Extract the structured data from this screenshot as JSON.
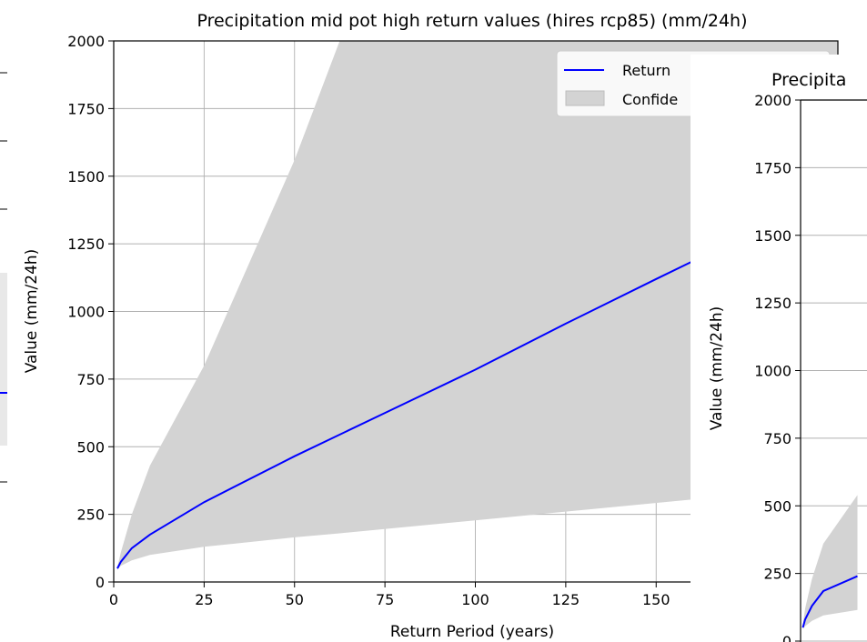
{
  "chart_data": [
    {
      "type": "line",
      "title": "Precipitation mid pot high return values (hires rcp85) (mm/24h)",
      "xlabel": "Return Period (years)",
      "ylabel": "Value (mm/24h)",
      "xticks": [
        "0",
        "25",
        "50",
        "75",
        "100",
        "125",
        "150"
      ],
      "yticks": [
        "0",
        "250",
        "500",
        "750",
        "1000",
        "1250",
        "1500",
        "1750",
        "2000"
      ],
      "ylim": [
        0,
        2000
      ],
      "grid": true,
      "legend": {
        "placement": "top-right",
        "entries": [
          "Return",
          "Confide"
        ]
      },
      "series": [
        {
          "name": "Return",
          "color": "#0000ff",
          "x": [
            1,
            2,
            5,
            10,
            25,
            50,
            75,
            100,
            125,
            150,
            160
          ],
          "values": [
            50,
            75,
            125,
            175,
            295,
            465,
            625,
            785,
            955,
            1120,
            1185
          ]
        },
        {
          "name": "Confide",
          "type": "band",
          "color": "#d3d3d3",
          "x": [
            1,
            2,
            5,
            10,
            25,
            50,
            62.5,
            160
          ],
          "lower": [
            45,
            60,
            80,
            100,
            130,
            165,
            180,
            305
          ],
          "upper": [
            55,
            110,
            250,
            430,
            800,
            1560,
            2000,
            2000
          ]
        }
      ]
    },
    {
      "type": "line",
      "title": "Precipita",
      "xlabel": "",
      "ylabel": "Value (mm/24h)",
      "yticks": [
        "0",
        "250",
        "500",
        "750",
        "1000",
        "1250",
        "1500",
        "1750",
        "2000"
      ],
      "ylim": [
        0,
        2000
      ],
      "grid": true,
      "series": [
        {
          "color": "#0000ff",
          "x": [
            1,
            2,
            5,
            10,
            25
          ],
          "values": [
            50,
            80,
            130,
            185,
            240
          ]
        },
        {
          "type": "band",
          "color": "#d3d3d3",
          "x": [
            1,
            2,
            5,
            10,
            25
          ],
          "lower": [
            45,
            55,
            75,
            95,
            115
          ],
          "upper": [
            60,
            120,
            230,
            360,
            540
          ]
        }
      ]
    }
  ]
}
